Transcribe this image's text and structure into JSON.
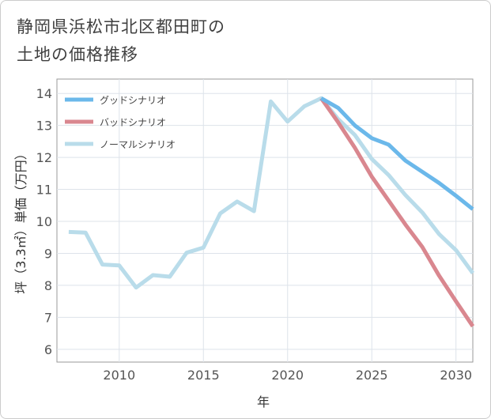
{
  "title": [
    "静岡県浜松市北区都田町の",
    "土地の価格推移"
  ],
  "chart_data": {
    "type": "line",
    "xlabel": "年",
    "ylabel": "坪（3.3㎡）単価（万円）",
    "xlim": [
      2006.3,
      2031
    ],
    "ylim": [
      5.6,
      14.45
    ],
    "xticks": [
      2010,
      2015,
      2020,
      2025,
      2030
    ],
    "yticks": [
      6,
      7,
      8,
      9,
      10,
      11,
      12,
      13,
      14
    ],
    "grid": true,
    "legend_position": "top-left",
    "series": [
      {
        "name": "グッドシナリオ",
        "color": "#6bb8ea",
        "x": [
          2022,
          2023,
          2024,
          2025,
          2026,
          2027,
          2028,
          2029,
          2030,
          2031
        ],
        "values": [
          13.85,
          13.55,
          13.0,
          12.6,
          12.4,
          11.9,
          11.55,
          11.2,
          10.8,
          10.38
        ]
      },
      {
        "name": "バッドシナリオ",
        "color": "#d9878f",
        "x": [
          2022,
          2023,
          2024,
          2025,
          2026,
          2027,
          2028,
          2029,
          2030,
          2031
        ],
        "values": [
          13.85,
          13.1,
          12.3,
          11.4,
          10.65,
          9.9,
          9.2,
          8.3,
          7.5,
          6.72
        ]
      },
      {
        "name": "ノーマルシナリオ",
        "color": "#b9dcea",
        "x": [
          2007,
          2008,
          2009,
          2010,
          2011,
          2012,
          2013,
          2014,
          2015,
          2016,
          2017,
          2018,
          2019,
          2020,
          2021,
          2022,
          2023,
          2024,
          2025,
          2026,
          2027,
          2028,
          2029,
          2030,
          2031
        ],
        "values": [
          9.67,
          9.65,
          8.65,
          8.62,
          7.93,
          8.32,
          8.27,
          9.02,
          9.18,
          10.25,
          10.62,
          10.32,
          13.75,
          13.12,
          13.6,
          13.85,
          13.2,
          12.7,
          11.95,
          11.45,
          10.82,
          10.28,
          9.6,
          9.1,
          8.38
        ]
      }
    ]
  }
}
